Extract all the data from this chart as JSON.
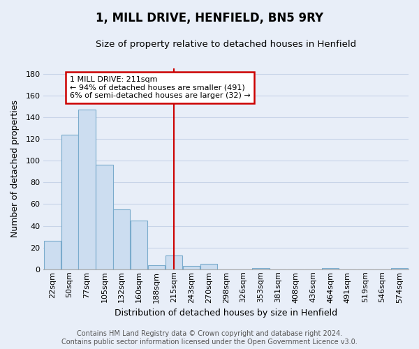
{
  "title": "1, MILL DRIVE, HENFIELD, BN5 9RY",
  "subtitle": "Size of property relative to detached houses in Henfield",
  "xlabel": "Distribution of detached houses by size in Henfield",
  "ylabel": "Number of detached properties",
  "bar_labels": [
    "22sqm",
    "50sqm",
    "77sqm",
    "105sqm",
    "132sqm",
    "160sqm",
    "188sqm",
    "215sqm",
    "243sqm",
    "270sqm",
    "298sqm",
    "326sqm",
    "353sqm",
    "381sqm",
    "408sqm",
    "436sqm",
    "464sqm",
    "491sqm",
    "519sqm",
    "546sqm",
    "574sqm"
  ],
  "bar_values": [
    26,
    124,
    147,
    96,
    55,
    45,
    4,
    13,
    3,
    5,
    0,
    0,
    1,
    0,
    0,
    0,
    1,
    0,
    0,
    0,
    1
  ],
  "bar_color": "#ccddf0",
  "bar_edge_color": "#7aabcc",
  "vline_x_idx": 7,
  "vline_color": "#cc0000",
  "annotation_title": "1 MILL DRIVE: 211sqm",
  "annotation_line1": "← 94% of detached houses are smaller (491)",
  "annotation_line2": "6% of semi-detached houses are larger (32) →",
  "annotation_box_color": "#ffffff",
  "annotation_box_edge_color": "#cc0000",
  "ylim": [
    0,
    185
  ],
  "yticks": [
    0,
    20,
    40,
    60,
    80,
    100,
    120,
    140,
    160,
    180
  ],
  "footer_line1": "Contains HM Land Registry data © Crown copyright and database right 2024.",
  "footer_line2": "Contains public sector information licensed under the Open Government Licence v3.0.",
  "background_color": "#e8eef8",
  "plot_bg_color": "#e8eef8",
  "grid_color": "#c8d4e8",
  "title_fontsize": 12,
  "subtitle_fontsize": 9.5,
  "axis_label_fontsize": 9,
  "tick_fontsize": 8,
  "footer_fontsize": 7
}
